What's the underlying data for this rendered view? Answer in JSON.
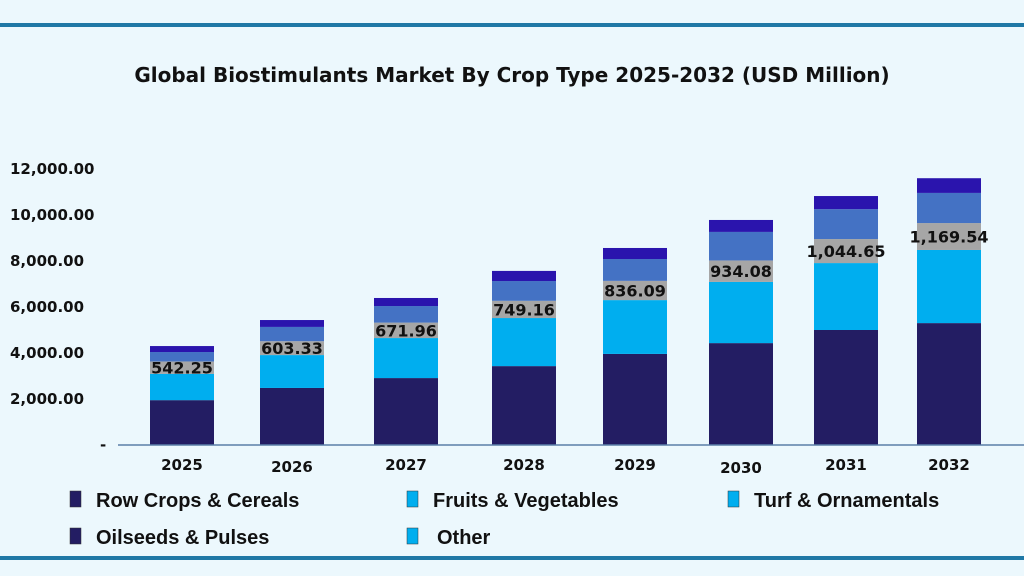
{
  "chart_data": {
    "type": "bar",
    "stacked": true,
    "title": "Global Biostimulants Market By Crop Type 2025-2032 (USD Million)",
    "xlabel": "",
    "ylabel": "",
    "ylim": [
      0,
      12000
    ],
    "yticks": [
      "-",
      "2,000.00",
      "4,000.00",
      "6,000.00",
      "8,000.00",
      "10,000.00",
      "12,000.00"
    ],
    "grid": false,
    "legend_placement": "bottom",
    "categories": [
      "2025",
      "2026",
      "2027",
      "2028",
      "2029",
      "2030",
      "2031",
      "2032"
    ],
    "series": [
      {
        "name": "Row Crops & Cereals",
        "color": "#231d63",
        "values": [
          1950,
          2480,
          2910,
          3430,
          3960,
          4430,
          5000,
          5300
        ]
      },
      {
        "name": "Fruits & Vegetables",
        "color": "#00aeef",
        "values": [
          1140,
          1430,
          1740,
          2090,
          2340,
          2660,
          2910,
          3180
        ]
      },
      {
        "name": "Turf & Ornamentals",
        "color": "#a6a6a6",
        "values": [
          542.25,
          603.33,
          671.96,
          749.16,
          836.09,
          934.08,
          1044.65,
          1169.54
        ],
        "labels": [
          "542.25",
          "603.33",
          "671.96",
          "749.16",
          "836.09",
          "934.08",
          "1,044.65",
          "1,169.54"
        ]
      },
      {
        "name": "Oilseeds & Pulses",
        "color": "#4472c4",
        "values": [
          410,
          620,
          720,
          860,
          950,
          1240,
          1300,
          1310
        ]
      },
      {
        "name": "Other",
        "color": "#2a14ad",
        "values": [
          260,
          300,
          350,
          440,
          480,
          520,
          570,
          640
        ]
      }
    ],
    "legend": [
      {
        "name": "Row Crops & Cereals",
        "swatch": "#231d63"
      },
      {
        "name": "Fruits & Vegetables",
        "swatch": "#00aeef"
      },
      {
        "name": "Turf & Ornamentals",
        "swatch": "#00aeef"
      },
      {
        "name": "Oilseeds & Pulses",
        "swatch": "#231d63"
      },
      {
        "name": "Other",
        "swatch": "#00aeef"
      }
    ]
  },
  "colors": {
    "background": "#ecf8fd",
    "frame_line": "#1f78a6",
    "axis": "#5b7fa8"
  }
}
